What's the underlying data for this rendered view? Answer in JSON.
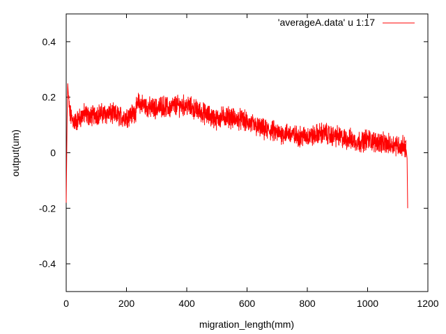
{
  "chart_data": {
    "type": "line",
    "title": "",
    "xlabel": "migration_length(mm)",
    "ylabel": "output(um)",
    "xlim": [
      0,
      1200
    ],
    "ylim": [
      -0.5,
      0.5
    ],
    "xticks": [
      0,
      200,
      400,
      600,
      800,
      1000,
      1200
    ],
    "yticks": [
      -0.4,
      -0.2,
      0,
      0.2,
      0.4
    ],
    "xtick_labels": [
      "0",
      "200",
      "400",
      "600",
      "800",
      "1000",
      "1200"
    ],
    "ytick_labels": [
      "-0.4",
      "-0.2",
      "0",
      "0.2",
      "0.4"
    ],
    "grid": false,
    "legend_position": "top-right",
    "series": [
      {
        "name": "'averageA.data' u 1:17",
        "color": "#ff0000",
        "x": [
          0,
          3,
          5,
          8,
          12,
          20,
          30,
          40,
          50,
          60,
          80,
          100,
          120,
          150,
          180,
          200,
          220,
          230,
          240,
          260,
          280,
          300,
          320,
          340,
          360,
          380,
          400,
          420,
          440,
          460,
          480,
          500,
          520,
          540,
          560,
          580,
          600,
          620,
          640,
          660,
          680,
          700,
          720,
          740,
          760,
          780,
          800,
          820,
          840,
          860,
          880,
          900,
          920,
          940,
          960,
          980,
          1000,
          1020,
          1040,
          1060,
          1080,
          1100,
          1110,
          1120,
          1128,
          1131,
          1133
        ],
        "y": [
          -0.18,
          0.12,
          0.25,
          0.19,
          0.14,
          0.12,
          0.11,
          0.12,
          0.13,
          0.14,
          0.13,
          0.14,
          0.14,
          0.14,
          0.13,
          0.13,
          0.14,
          0.15,
          0.18,
          0.17,
          0.16,
          0.16,
          0.17,
          0.16,
          0.17,
          0.17,
          0.17,
          0.16,
          0.15,
          0.14,
          0.13,
          0.12,
          0.13,
          0.13,
          0.12,
          0.12,
          0.11,
          0.1,
          0.09,
          0.08,
          0.08,
          0.07,
          0.07,
          0.07,
          0.06,
          0.06,
          0.06,
          0.06,
          0.07,
          0.07,
          0.06,
          0.06,
          0.05,
          0.05,
          0.04,
          0.04,
          0.05,
          0.04,
          0.04,
          0.03,
          0.03,
          0.03,
          0.02,
          0.03,
          0.01,
          -0.02,
          -0.2
        ],
        "noise_amplitude": 0.03
      }
    ]
  }
}
